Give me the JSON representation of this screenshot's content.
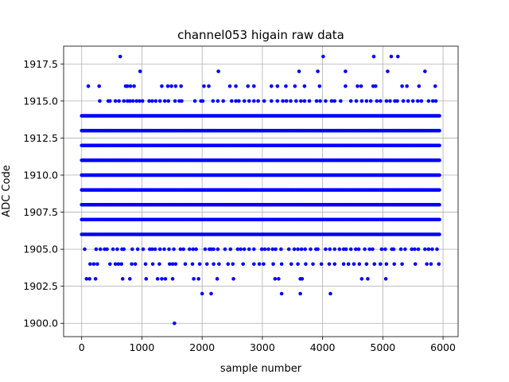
{
  "chart_data": {
    "type": "scatter",
    "title": "channel053 higain raw data",
    "xlabel": "sample number",
    "ylabel": "ADC Code",
    "xlim": [
      -300,
      6250
    ],
    "ylim": [
      1899.1,
      1918.7
    ],
    "x_ticks": [
      "0",
      "1000",
      "2000",
      "3000",
      "4000",
      "5000",
      "6000"
    ],
    "x_tick_values": [
      0,
      1000,
      2000,
      3000,
      4000,
      5000,
      6000
    ],
    "y_ticks": [
      "1900.0",
      "1902.5",
      "1905.0",
      "1907.5",
      "1910.0",
      "1912.5",
      "1915.0",
      "1917.5"
    ],
    "y_tick_values": [
      1900,
      1902.5,
      1905,
      1907.5,
      1910,
      1912.5,
      1915,
      1917.5
    ],
    "grid": true,
    "marker_color": "#0000ff",
    "sample_range": [
      0,
      5940
    ],
    "dense_levels": [
      1906,
      1907,
      1908,
      1909,
      1910,
      1911,
      1912,
      1913,
      1914
    ],
    "sparse_levels": {
      "1915": [
        300,
        440,
        470,
        560,
        620,
        700,
        760,
        800,
        850,
        910,
        960,
        1010,
        1120,
        1170,
        1230,
        1300,
        1380,
        1440,
        1550,
        1620,
        1660,
        1880,
        1980,
        2010,
        2180,
        2260,
        2350,
        2490,
        2560,
        2610,
        2700,
        2780,
        2860,
        2930,
        3030,
        3150,
        3250,
        3340,
        3400,
        3470,
        3560,
        3640,
        3700,
        3780,
        3900,
        3960,
        4050,
        4150,
        4200,
        4300,
        4470,
        4560,
        4650,
        4730,
        4800,
        4900,
        4960,
        5060,
        5120,
        5200,
        5240,
        5340,
        5420,
        5500,
        5580,
        5640,
        5760,
        5830,
        5880
      ],
      "1905": [
        50,
        240,
        310,
        380,
        420,
        520,
        590,
        670,
        700,
        840,
        930,
        1020,
        1130,
        1170,
        1220,
        1300,
        1370,
        1450,
        1530,
        1640,
        1690,
        1790,
        1850,
        1900,
        2050,
        2120,
        2150,
        2190,
        2260,
        2380,
        2470,
        2590,
        2640,
        2700,
        2780,
        2860,
        2990,
        3040,
        3100,
        3170,
        3220,
        3310,
        3440,
        3530,
        3590,
        3650,
        3710,
        3800,
        3890,
        3920,
        4050,
        4120,
        4200,
        4280,
        4350,
        4390,
        4470,
        4550,
        4600,
        4700,
        4780,
        4830,
        4980,
        5040,
        5150,
        5180,
        5300,
        5370,
        5480,
        5530,
        5590,
        5700,
        5760,
        5820,
        5900
      ],
      "1916": [
        110,
        290,
        730,
        760,
        810,
        870,
        1330,
        1430,
        1490,
        1560,
        1650,
        2030,
        2110,
        2460,
        2560,
        2760,
        2860,
        3150,
        3250,
        3390,
        3540,
        3700,
        3950,
        4380,
        4580,
        4640,
        4840,
        4880,
        5320,
        5400,
        5600,
        5870
      ],
      "1904": [
        140,
        200,
        260,
        470,
        560,
        610,
        660,
        830,
        890,
        1060,
        1180,
        1290,
        1460,
        1510,
        1560,
        1720,
        1840,
        1960,
        2080,
        2190,
        2280,
        2430,
        2510,
        2680,
        2860,
        2950,
        3020,
        3180,
        3320,
        3480,
        3590,
        3720,
        3840,
        3980,
        4110,
        4200,
        4350,
        4430,
        4520,
        4610,
        4730,
        4860,
        4960,
        5060,
        5190,
        5320,
        5540,
        5730,
        5800,
        5930
      ],
      "1903": [
        80,
        130,
        230,
        680,
        800,
        1070,
        1260,
        1330,
        1390,
        1510,
        1860,
        1940,
        2250,
        2520,
        3210,
        3270,
        3630,
        3660,
        4650,
        4750,
        5050
      ],
      "1917": [
        970,
        2270,
        3610,
        3920,
        4380,
        5080,
        5700
      ],
      "1918": [
        640,
        4010,
        4850,
        5140,
        5250
      ],
      "1902": [
        2000,
        2150,
        3320,
        3630,
        4130
      ],
      "1900": [
        1540
      ]
    }
  }
}
